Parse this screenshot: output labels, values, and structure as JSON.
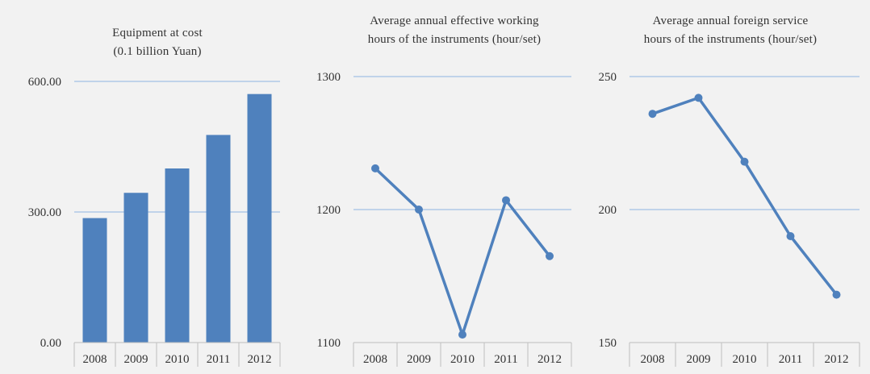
{
  "chart_data": [
    {
      "type": "bar",
      "title": [
        "Equipment at cost",
        "(0.1 billion Yuan)"
      ],
      "categories": [
        "2008",
        "2009",
        "2010",
        "2011",
        "2012"
      ],
      "values": [
        286,
        344,
        400,
        477,
        571
      ],
      "ylim": [
        0,
        600
      ],
      "yticks": [
        "0.00",
        "300.00",
        "600.00"
      ],
      "ytick_values": [
        0,
        300,
        600
      ],
      "grid": true,
      "color": "#4f81bd"
    },
    {
      "type": "line",
      "title": [
        "Average annual effective working",
        "hours of the instruments (hour/set)"
      ],
      "categories": [
        "2008",
        "2009",
        "2010",
        "2011",
        "2012"
      ],
      "values": [
        1231,
        1200,
        1106,
        1207,
        1165
      ],
      "ylim": [
        1100,
        1300
      ],
      "yticks": [
        "1100",
        "1200",
        "1300"
      ],
      "ytick_values": [
        1100,
        1200,
        1300
      ],
      "grid": true,
      "color": "#4f81bd"
    },
    {
      "type": "line",
      "title": [
        "Average annual foreign service",
        "hours of the instruments (hour/set)"
      ],
      "categories": [
        "2008",
        "2009",
        "2010",
        "2011",
        "2012"
      ],
      "values": [
        236,
        242,
        218,
        190,
        168
      ],
      "ylim": [
        150,
        250
      ],
      "yticks": [
        "150",
        "200",
        "250"
      ],
      "ytick_values": [
        150,
        200,
        250
      ],
      "grid": true,
      "color": "#4f81bd"
    }
  ]
}
